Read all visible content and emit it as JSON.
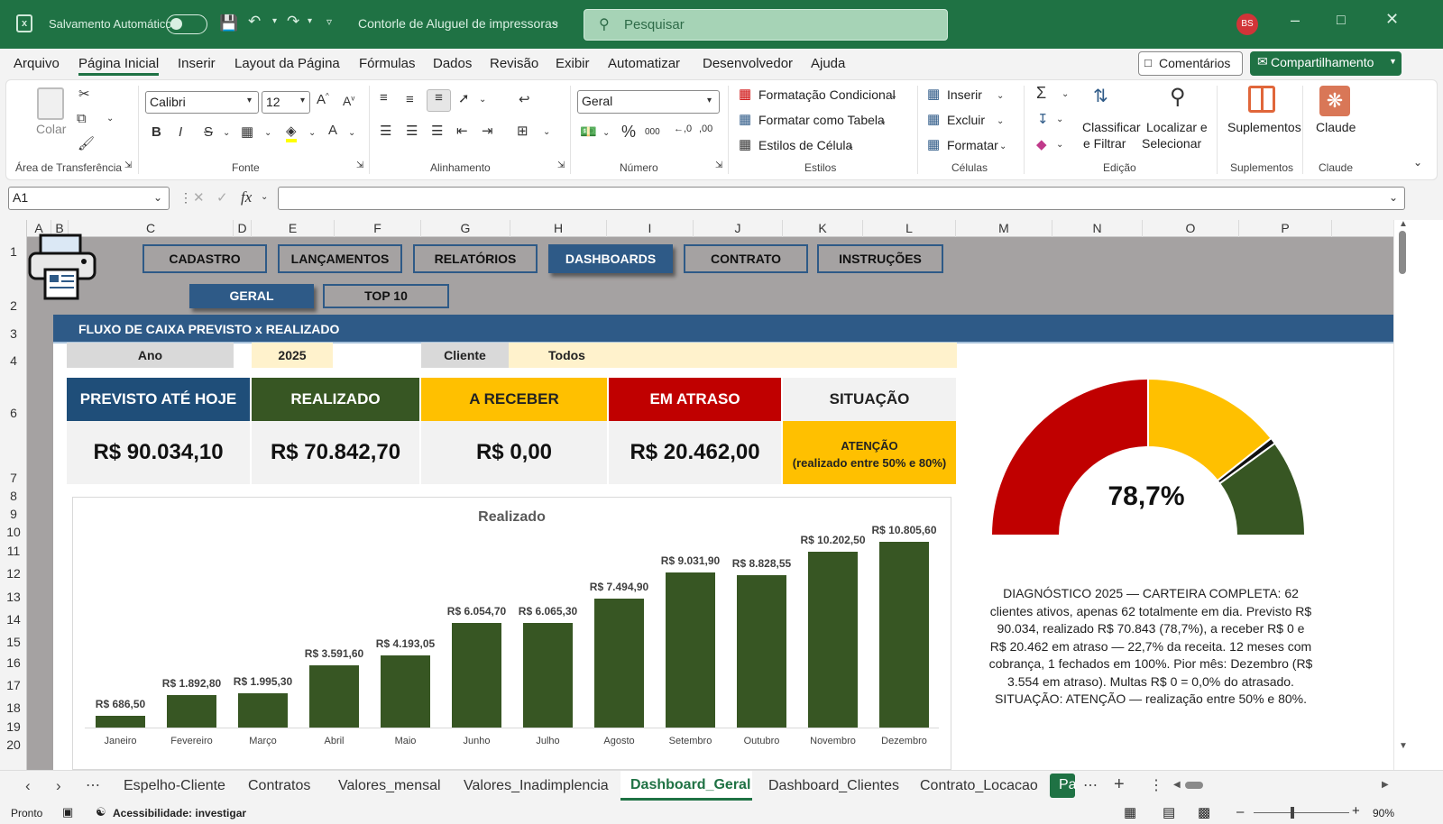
{
  "titlebar": {
    "autosave_label": "Salvamento Automático",
    "doc_title": "Contorle de Aluguel de impressoras",
    "search_placeholder": "Pesquisar",
    "avatar_initials": "BS"
  },
  "menu": {
    "items": [
      "Arquivo",
      "Página Inicial",
      "Inserir",
      "Layout da Página",
      "Fórmulas",
      "Dados",
      "Revisão",
      "Exibir",
      "Automatizar",
      "Desenvolvedor",
      "Ajuda"
    ],
    "comments": "Comentários",
    "share": "Compartilhamento"
  },
  "ribbon": {
    "paste": "Colar",
    "clipboard": "Área de Transferência",
    "font_name": "Calibri",
    "font_size": "12",
    "font_group": "Fonte",
    "align_group": "Alinhamento",
    "number_format": "Geral",
    "number_group": "Número",
    "cond_format": "Formatação Condicional",
    "format_table": "Formatar como Tabela",
    "cell_styles": "Estilos de Célula",
    "styles_group": "Estilos",
    "insert": "Inserir",
    "delete": "Excluir",
    "format": "Formatar",
    "cells_group": "Células",
    "sort_filter_1": "Classificar",
    "sort_filter_2": "e Filtrar",
    "find_select_1": "Localizar e",
    "find_select_2": "Selecionar",
    "editing_group": "Edição",
    "addins": "Suplementos",
    "addins_group": "Suplementos",
    "claude": "Claude",
    "claude_group": "Claude"
  },
  "formula_bar": {
    "name_box": "A1",
    "fx": "fx",
    "formula": ""
  },
  "columns": [
    "A",
    "B",
    "C",
    "D",
    "E",
    "F",
    "G",
    "H",
    "I",
    "J",
    "K",
    "L",
    "M",
    "N",
    "O",
    "P"
  ],
  "rows": [
    "1",
    "2",
    "3",
    "4",
    "6",
    "7",
    "8",
    "9",
    "10",
    "11",
    "12",
    "13",
    "14",
    "15",
    "16",
    "17",
    "18",
    "19",
    "20"
  ],
  "dashboard": {
    "nav": [
      "CADASTRO",
      "LANÇAMENTOS",
      "RELATÓRIOS",
      "DASHBOARDS",
      "CONTRATO",
      "INSTRUÇÕES"
    ],
    "subnav": [
      "GERAL",
      "TOP 10"
    ],
    "section_title": "FLUXO DE CAIXA PREVISTO x REALIZADO",
    "year_label": "Ano",
    "year_value": "2025",
    "client_label": "Cliente",
    "client_value": "Todos",
    "kpis": [
      {
        "title": "PREVISTO ATÉ HOJE",
        "value": "R$ 90.034,10",
        "bg": "#1f4e79",
        "fg": "#ffffff"
      },
      {
        "title": "REALIZADO",
        "value": "R$ 70.842,70",
        "bg": "#375623",
        "fg": "#ffffff"
      },
      {
        "title": "A RECEBER",
        "value": "R$ 0,00",
        "bg": "#ffc000",
        "fg": "#222222"
      },
      {
        "title": "EM ATRASO",
        "value": "R$ 20.462,00",
        "bg": "#c00000",
        "fg": "#ffffff"
      }
    ],
    "situation_title": "SITUAÇÃO",
    "situation_line1": "ATENÇÃO",
    "situation_line2": "(realizado entre 50% e 80%)",
    "gauge_value": "78,7%",
    "diagnosis": "DIAGNÓSTICO 2025 — CARTEIRA COMPLETA: 62 clientes ativos, apenas 62 totalmente em dia. Previsto R$ 90.034, realizado R$ 70.843 (78,7%), a receber R$ 0 e R$ 20.462 em atraso — 22,7% da receita. 12 meses com cobrança, 1 fechados em 100%. Pior mês: Dezembro (R$ 3.554 em atraso). Multas R$ 0 = 0,0% do atrasado. SITUAÇÃO: ATENÇÃO — realização entre 50% e 80%."
  },
  "chart_data": [
    {
      "type": "bar",
      "title": "Realizado",
      "categories": [
        "Janeiro",
        "Fevereiro",
        "Março",
        "Abril",
        "Maio",
        "Junho",
        "Julho",
        "Agosto",
        "Setembro",
        "Outubro",
        "Novembro",
        "Dezembro"
      ],
      "values": [
        686.5,
        1892.8,
        1995.3,
        3591.6,
        4193.05,
        6054.7,
        6065.3,
        7494.9,
        9031.9,
        8828.55,
        10202.5,
        10805.6
      ],
      "labels": [
        "R$ 686,50",
        "R$ 1.892,80",
        "R$ 1.995,30",
        "R$ 3.591,60",
        "R$ 4.193,05",
        "R$ 6.054,70",
        "R$ 6.065,30",
        "R$ 7.494,90",
        "R$ 9.031,90",
        "R$ 8.828,55",
        "R$ 10.202,50",
        "R$ 10.805,60"
      ],
      "ylim": [
        0,
        11000
      ],
      "color": "#375623",
      "grid": false
    },
    {
      "type": "pie",
      "title": "",
      "note": "half-donut gauge",
      "slices": [
        {
          "name": "red zone",
          "value": 50,
          "color": "#c00000"
        },
        {
          "name": "yellow zone",
          "value": 28.7,
          "color": "#ffc000"
        },
        {
          "name": "pointer",
          "value": 1.3,
          "color": "#111111"
        },
        {
          "name": "green zone",
          "value": 20,
          "color": "#375623"
        }
      ],
      "center_label": "78,7%"
    }
  ],
  "sheet_tabs": [
    "Espelho-Cliente",
    "Contratos",
    "Valores_mensal",
    "Valores_Inadimplencia",
    "Dashboard_Geral",
    "Dashboard_Clientes",
    "Contrato_Locacao",
    "Pa"
  ],
  "active_tab": "Dashboard_Geral",
  "status": {
    "ready": "Pronto",
    "accessibility": "Acessibilidade: investigar",
    "zoom": "90%"
  }
}
